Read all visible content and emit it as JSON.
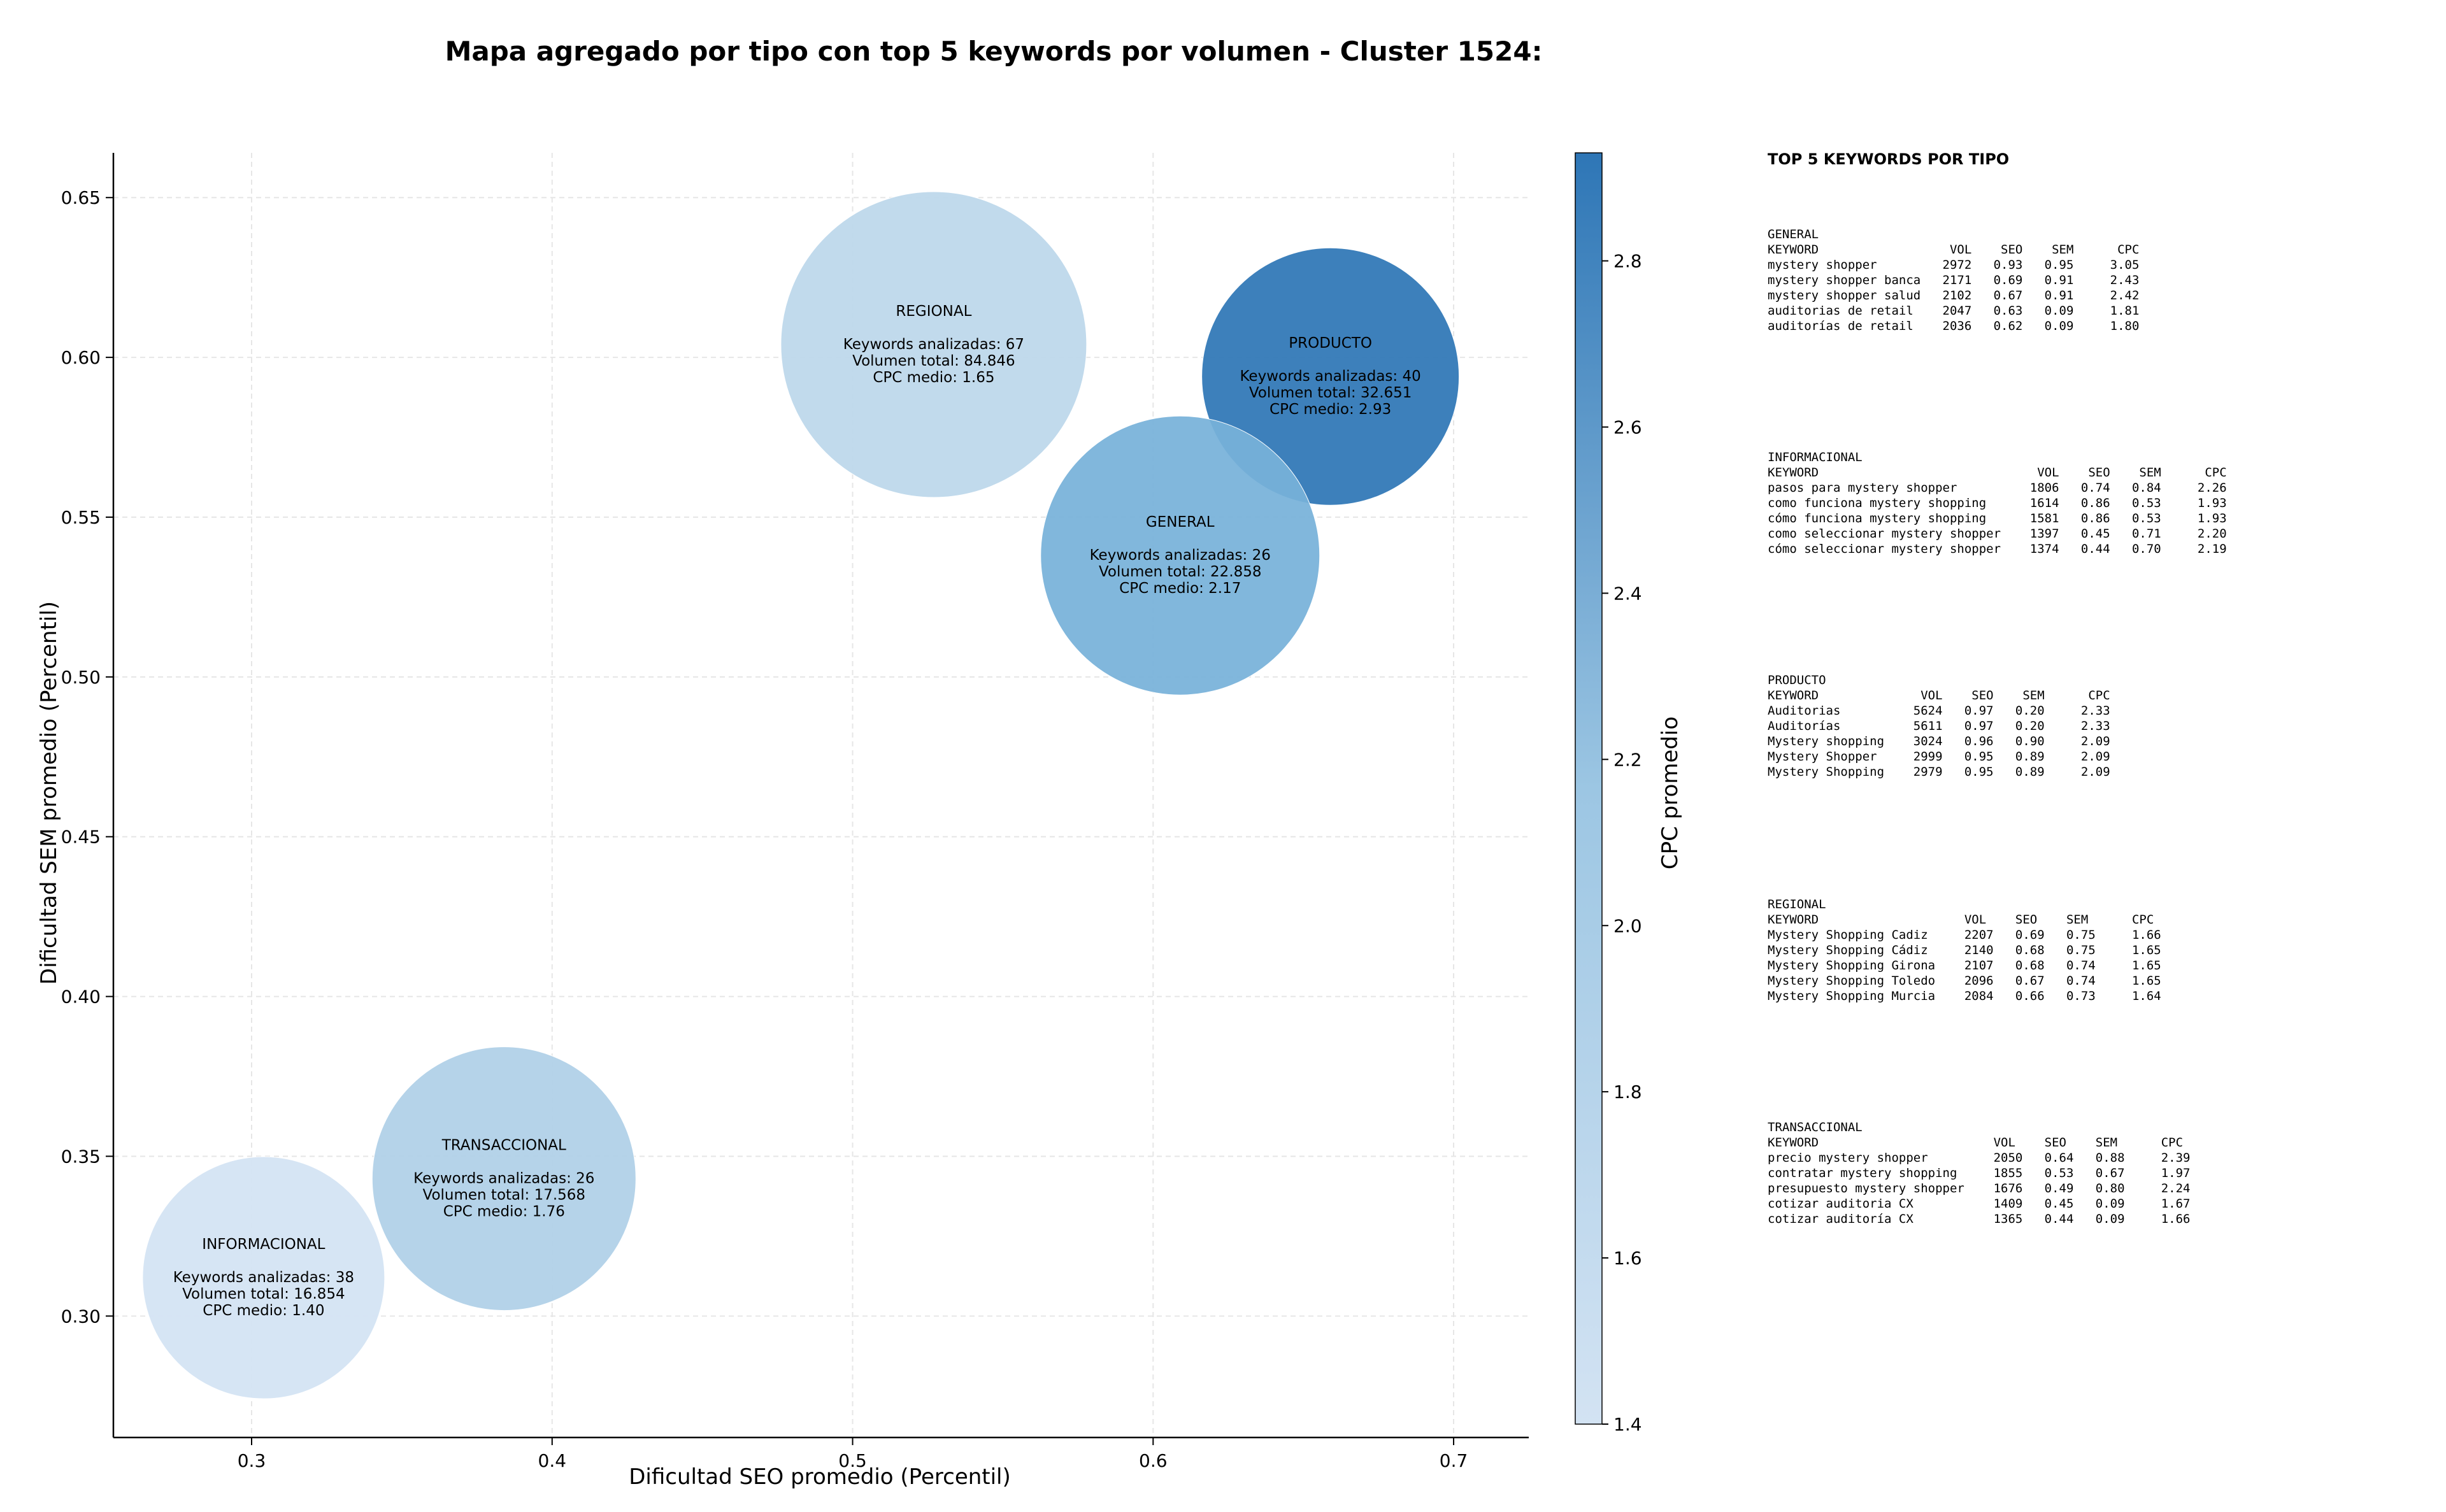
{
  "chart_data": {
    "type": "scatter",
    "title": "Mapa agregado por tipo con top 5 keywords por volumen - Cluster 1524:",
    "xlabel": "Dificultad SEO promedio (Percentil)",
    "ylabel": "Dificultad SEM promedio (Percentil)",
    "xlim": [
      0.254,
      0.725
    ],
    "ylim": [
      0.262,
      0.664
    ],
    "xticks": [
      "0.3",
      "0.4",
      "0.5",
      "0.6",
      "0.7"
    ],
    "yticks": [
      "0.30",
      "0.35",
      "0.40",
      "0.45",
      "0.50",
      "0.55",
      "0.60",
      "0.65"
    ],
    "grid": true,
    "colorbar": {
      "label": "CPC promedio",
      "range": [
        1.4,
        2.93
      ],
      "ticks": [
        "1.4",
        "1.6",
        "1.8",
        "2.0",
        "2.2",
        "2.4",
        "2.6",
        "2.8"
      ],
      "color_low": "#d3e3f3",
      "color_high": "#2e76b6"
    },
    "points": [
      {
        "name": "REGIONAL",
        "x": 0.527,
        "y": 0.604,
        "keywords": 67,
        "volume": 84846,
        "cpc": 1.65,
        "lines": [
          "Keywords analizadas: 67",
          "Volumen total: 84.846",
          "CPC medio: 1.65"
        ],
        "color": "#bcd7eb"
      },
      {
        "name": "PRODUCTO",
        "x": 0.659,
        "y": 0.594,
        "keywords": 40,
        "volume": 32651,
        "cpc": 2.93,
        "lines": [
          "Keywords analizadas: 40",
          "Volumen total: 32.651",
          "CPC medio: 2.93"
        ],
        "color": "#2e76b6"
      },
      {
        "name": "GENERAL",
        "x": 0.609,
        "y": 0.538,
        "keywords": 26,
        "volume": 22858,
        "cpc": 2.17,
        "lines": [
          "Keywords analizadas: 26",
          "Volumen total: 22.858",
          "CPC medio: 2.17"
        ],
        "color": "#77b1d9"
      },
      {
        "name": "TRANSACCIONAL",
        "x": 0.384,
        "y": 0.343,
        "keywords": 26,
        "volume": 17568,
        "cpc": 1.76,
        "lines": [
          "Keywords analizadas: 26",
          "Volumen total: 17.568",
          "CPC medio: 1.76"
        ],
        "color": "#afd0e7"
      },
      {
        "name": "INFORMACIONAL",
        "x": 0.304,
        "y": 0.312,
        "keywords": 38,
        "volume": 16854,
        "cpc": 1.4,
        "lines": [
          "Keywords analizadas: 38",
          "Volumen total: 16.854",
          "CPC medio: 1.40"
        ],
        "color": "#d3e3f3"
      }
    ]
  },
  "side_panel": {
    "title": "TOP 5 KEYWORDS POR TIPO",
    "blocks": [
      {
        "lines": [
          "GENERAL",
          "KEYWORD                  VOL    SEO    SEM      CPC",
          "mystery shopper         2972   0.93   0.95     3.05",
          "mystery shopper banca   2171   0.69   0.91     2.43",
          "mystery shopper salud   2102   0.67   0.91     2.42",
          "auditorias de retail    2047   0.63   0.09     1.81",
          "auditorías de retail    2036   0.62   0.09     1.80"
        ]
      },
      {
        "lines": [
          "INFORMACIONAL",
          "KEYWORD                              VOL    SEO    SEM      CPC",
          "pasos para mystery shopper          1806   0.74   0.84     2.26",
          "como funciona mystery shopping      1614   0.86   0.53     1.93",
          "cómo funciona mystery shopping      1581   0.86   0.53     1.93",
          "como seleccionar mystery shopper    1397   0.45   0.71     2.20",
          "cómo seleccionar mystery shopper    1374   0.44   0.70     2.19"
        ]
      },
      {
        "lines": [
          "PRODUCTO",
          "KEYWORD              VOL    SEO    SEM      CPC",
          "Auditorias          5624   0.97   0.20     2.33",
          "Auditorías          5611   0.97   0.20     2.33",
          "Mystery shopping    3024   0.96   0.90     2.09",
          "Mystery Shopper     2999   0.95   0.89     2.09",
          "Mystery Shopping    2979   0.95   0.89     2.09"
        ]
      },
      {
        "lines": [
          "REGIONAL",
          "KEYWORD                    VOL    SEO    SEM      CPC",
          "Mystery Shopping Cadiz     2207   0.69   0.75     1.66",
          "Mystery Shopping Cádiz     2140   0.68   0.75     1.65",
          "Mystery Shopping Girona    2107   0.68   0.74     1.65",
          "Mystery Shopping Toledo    2096   0.67   0.74     1.65",
          "Mystery Shopping Murcia    2084   0.66   0.73     1.64"
        ]
      },
      {
        "lines": [
          "TRANSACCIONAL",
          "KEYWORD                        VOL    SEO    SEM      CPC",
          "precio mystery shopper         2050   0.64   0.88     2.39",
          "contratar mystery shopping     1855   0.53   0.67     1.97",
          "presupuesto mystery shopper    1676   0.49   0.80     2.24",
          "cotizar auditoria CX           1409   0.45   0.09     1.67",
          "cotizar auditoría CX           1365   0.44   0.09     1.66"
        ]
      }
    ]
  }
}
